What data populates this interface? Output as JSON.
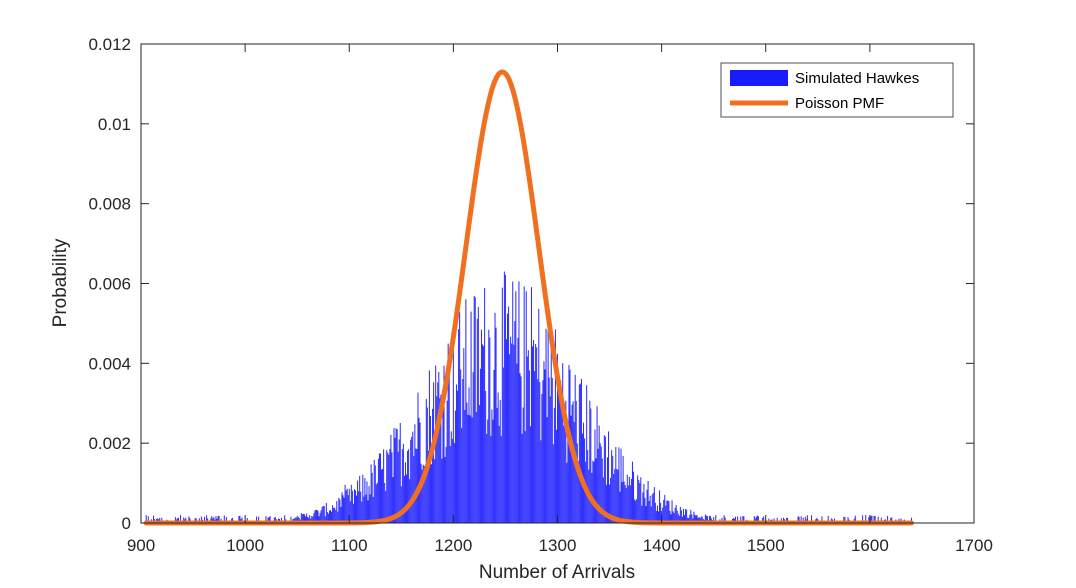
{
  "chart_data": {
    "type": "bar",
    "title": "",
    "xlabel": "Number of Arrivals",
    "ylabel": "Probability",
    "xlim": [
      900,
      1700
    ],
    "ylim": [
      0,
      0.012
    ],
    "x_ticks": [
      900,
      1000,
      1100,
      1200,
      1300,
      1400,
      1500,
      1600,
      1700
    ],
    "x_tick_labels": [
      "900",
      "1000",
      "1100",
      "1200",
      "1300",
      "1400",
      "1500",
      "1600",
      "1700"
    ],
    "y_ticks": [
      0,
      0.002,
      0.004,
      0.006,
      0.008,
      0.01,
      0.012
    ],
    "y_tick_labels": [
      "0",
      "0.002",
      "0.004",
      "0.006",
      "0.008",
      "0.01",
      "0.012"
    ],
    "grid": false,
    "box": true,
    "legend": {
      "position": "top-right"
    },
    "series": [
      {
        "name": "Simulated Hawkes",
        "kind": "histogram",
        "color": "#1a1aff",
        "bin_width": 1,
        "x_start": 905,
        "x_end": 1640,
        "approx_peak_x": 1247,
        "approx_peak_value": 0.0063,
        "approx_spread_sd": 75,
        "notes_visible": "noisy bars concentrated between ~1050 and ~1450"
      },
      {
        "name": "Poisson PMF",
        "kind": "line",
        "color": "#f07020",
        "line_width": 5,
        "mean": 1247,
        "x_range": [
          905,
          1640
        ],
        "peak_value": 0.0113
      }
    ]
  }
}
